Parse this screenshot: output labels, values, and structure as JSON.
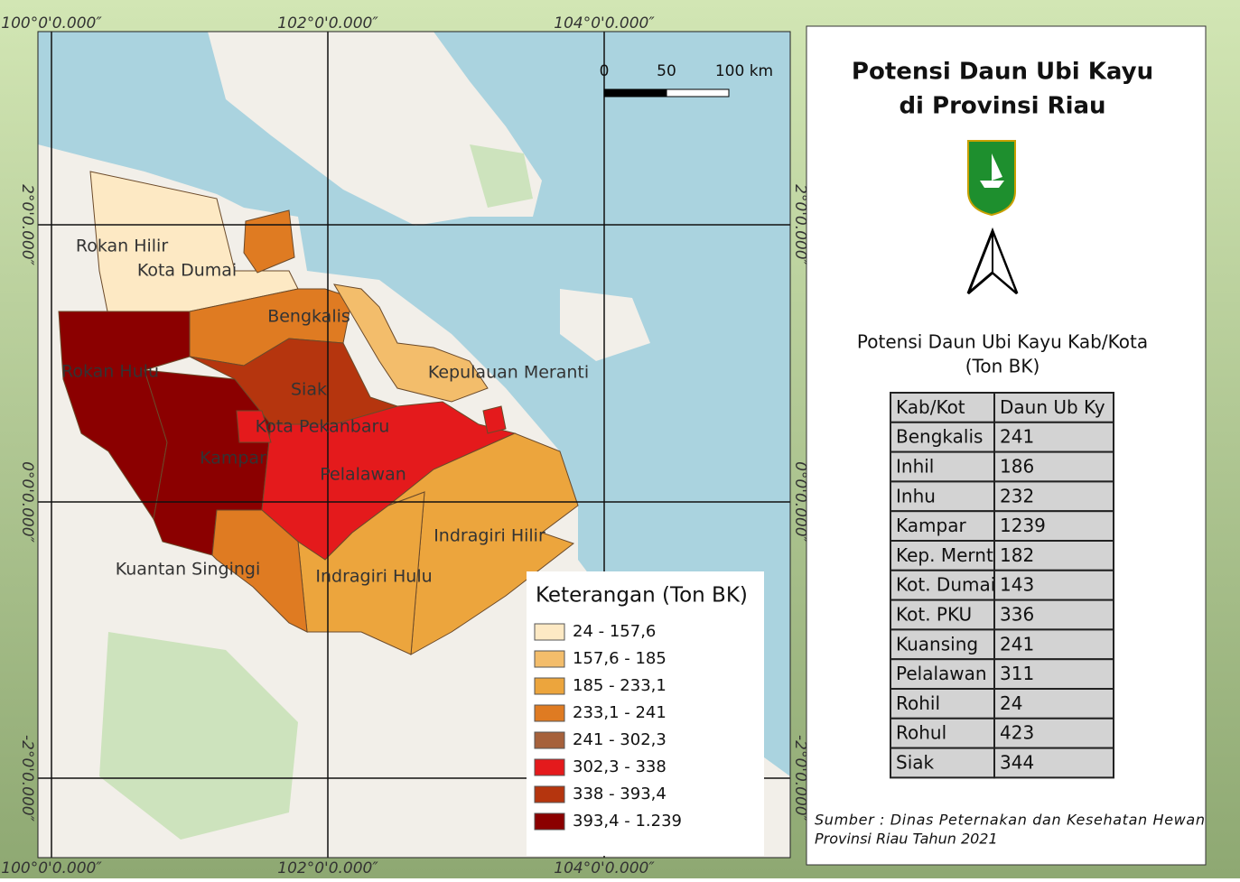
{
  "map": {
    "grid_labels": {
      "top": [
        "100°0'0.000″",
        "102°0'0.000″",
        "104°0'0.000″"
      ],
      "bottom": [
        "100°0'0.000″",
        "102°0'0.000″",
        "104°0'0.000″"
      ],
      "left": [
        "2°0'0.000″",
        "0°0'0.000″",
        "-2°0'0.000″"
      ],
      "right": [
        "2°0'0.000″",
        "0°0'0.000″",
        "-2°0'0.000″"
      ]
    },
    "scale_bar": [
      "0",
      "50",
      "100 km"
    ],
    "regions": [
      "Rokan Hilir",
      "Kota Dumai",
      "Bengkalis",
      "Rokan Hulu",
      "Siak",
      "Kepulauan Meranti",
      "Kota Pekanbaru",
      "Kampar",
      "Pelalawan",
      "Indragiri Hilir",
      "Kuantan Singingi",
      "Indragiri Hulu"
    ],
    "legend": {
      "title": "Keterangan (Ton BK)",
      "items": [
        {
          "label": "24 - 157,6",
          "color": "#fde9c4"
        },
        {
          "label": "157,6 - 185",
          "color": "#f3bd6b"
        },
        {
          "label": "185 - 233,1",
          "color": "#eca53d"
        },
        {
          "label": "233,1 - 241",
          "color": "#df7b22"
        },
        {
          "label": "241 - 302,3",
          "color": "#a6613b"
        },
        {
          "label": "302,3 - 338",
          "color": "#e41a1c"
        },
        {
          "label": "338 - 393,4",
          "color": "#b5350e"
        },
        {
          "label": "393,4 - 1.239",
          "color": "#8b0000"
        }
      ]
    }
  },
  "panel": {
    "title": [
      "Potensi Daun Ubi Kayu",
      "di Provinsi Riau"
    ],
    "subtitle": [
      "Potensi Daun Ubi Kayu Kab/Kota",
      "(Ton BK)"
    ],
    "table": {
      "header": [
        "Kab/Kot",
        "Daun Ub Ky"
      ],
      "rows": [
        [
          "Bengkalis",
          241
        ],
        [
          "Inhil",
          186
        ],
        [
          "Inhu",
          232
        ],
        [
          "Kampar",
          1239
        ],
        [
          "Kep. Mernt",
          182
        ],
        [
          "Kot. Dumai",
          143
        ],
        [
          "Kot. PKU",
          336
        ],
        [
          "Kuansing",
          241
        ],
        [
          "Pelalawan",
          311
        ],
        [
          "Rohil",
          24
        ],
        [
          "Rohul",
          423
        ],
        [
          "Siak",
          344
        ]
      ]
    },
    "source": [
      "Sumber : Dinas Peternakan dan Kesehatan Hewan",
      "Provinsi Riau Tahun 2021"
    ]
  }
}
